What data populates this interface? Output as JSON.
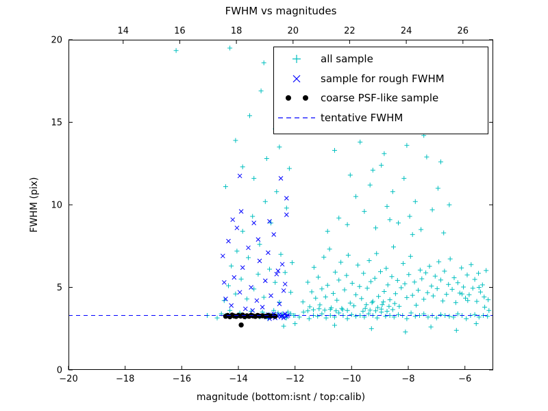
{
  "figure": {
    "title": "FWHM vs magnitudes",
    "xlabel": "magnitude (bottom:isnt / top:calib)",
    "ylabel": "FWHM (pix)"
  },
  "legend": {
    "items": [
      {
        "label": "all sample",
        "marker": "plus",
        "color": "#00BFBF"
      },
      {
        "label": "sample for rough FWHM",
        "marker": "x",
        "color": "#0000FF"
      },
      {
        "label": "coarse PSF-like sample",
        "marker": "dots",
        "color": "#000000"
      },
      {
        "label": "tentative FWHM",
        "marker": "dashed-line",
        "color": "#0000FF"
      }
    ]
  },
  "chart_data": {
    "type": "scatter",
    "title": "FWHM vs magnitudes",
    "xlabel": "magnitude (bottom:isnt / top:calib)",
    "ylabel": "FWHM (pix)",
    "xlim": [
      -20,
      -5
    ],
    "ylim": [
      0,
      20
    ],
    "x_ticks_bottom": [
      -20,
      -18,
      -16,
      -14,
      -12,
      -10,
      -8,
      -6
    ],
    "top_axis": {
      "range": [
        12.07,
        27.07
      ],
      "ticks": [
        14,
        16,
        18,
        20,
        22,
        24,
        26
      ]
    },
    "y_ticks": [
      0,
      5,
      10,
      15,
      20
    ],
    "grid": false,
    "legend_position": "upper right",
    "tentative_fwhm": 3.3,
    "series": [
      {
        "name": "all sample",
        "marker": "plus",
        "color": "#00BFBF",
        "points": [
          -13.25,
          3.2,
          -13.1,
          3.35,
          -12.95,
          3.1,
          -12.8,
          3.3,
          -12.6,
          3.45,
          -12.45,
          3.25,
          -12.3,
          3.15,
          -12.15,
          3.4,
          -12.0,
          3.3,
          -11.85,
          3.2,
          -11.7,
          3.5,
          -11.5,
          3.1,
          -11.35,
          3.3,
          -11.2,
          3.25,
          -11.05,
          3.4,
          -10.9,
          3.15,
          -10.75,
          3.3,
          -10.6,
          3.2,
          -10.45,
          3.45,
          -10.3,
          3.3,
          -10.15,
          3.1,
          -10.0,
          3.35,
          -9.85,
          3.25,
          -9.7,
          3.3,
          -9.55,
          3.2,
          -9.4,
          3.4,
          -9.25,
          3.3,
          -9.1,
          3.15,
          -8.95,
          3.5,
          -8.8,
          3.25,
          -8.65,
          3.3,
          -8.5,
          3.2,
          -8.35,
          3.35,
          -8.2,
          3.3,
          -8.05,
          3.1,
          -7.9,
          3.45,
          -7.75,
          3.25,
          -7.6,
          3.3,
          -7.45,
          3.4,
          -7.3,
          3.2,
          -7.15,
          3.3,
          -7.0,
          3.15,
          -6.85,
          3.35,
          -6.7,
          3.3,
          -6.55,
          3.25,
          -6.4,
          3.2,
          -6.25,
          3.4,
          -6.1,
          3.3,
          -5.95,
          3.1,
          -5.8,
          3.3,
          -5.65,
          3.35,
          -5.5,
          3.2,
          -5.35,
          3.3,
          -5.2,
          3.25,
          -9.3,
          2.5,
          -8.1,
          2.3,
          -7.2,
          2.6,
          -10.6,
          2.7,
          -6.3,
          2.4,
          -5.6,
          2.8,
          -5.9,
          4.2,
          -5.3,
          3.8,
          -6.1,
          4.6,
          -5.5,
          5.0,
          -5.15,
          3.6,
          -12.4,
          2.65,
          -12.0,
          2.8,
          -15.1,
          3.3,
          -11.72,
          4.12,
          -11.55,
          5.31,
          -11.48,
          3.82,
          -11.41,
          4.73,
          -11.33,
          6.21,
          -11.27,
          4.35,
          -11.18,
          5.62,
          -11.12,
          3.94,
          -11.05,
          4.91,
          -10.98,
          6.83,
          -10.92,
          4.42,
          -10.85,
          5.13,
          -10.78,
          7.32,
          -10.72,
          3.76,
          -10.65,
          4.63,
          -10.58,
          5.92,
          -10.52,
          4.22,
          -10.45,
          5.44,
          -10.38,
          6.52,
          -10.32,
          3.65,
          -10.25,
          4.85,
          -10.18,
          5.72,
          -10.12,
          6.95,
          -10.05,
          4.05,
          -9.98,
          5.25,
          -9.92,
          3.88,
          -9.85,
          4.55,
          -9.78,
          6.35,
          -9.72,
          5.05,
          -9.65,
          4.32,
          -9.58,
          5.85,
          -9.52,
          3.72,
          -9.45,
          4.95,
          -9.38,
          6.62,
          -9.32,
          5.35,
          -9.25,
          4.15,
          -9.18,
          5.55,
          -9.12,
          7.05,
          -9.05,
          4.45,
          -8.98,
          5.95,
          -8.92,
          3.95,
          -8.85,
          4.75,
          -8.78,
          6.15,
          -8.72,
          5.15,
          -8.65,
          4.25,
          -8.58,
          5.65,
          -8.52,
          7.45,
          -8.45,
          4.62,
          -8.38,
          5.42,
          -8.32,
          3.85,
          -8.25,
          4.98,
          -8.18,
          6.45,
          -8.12,
          5.22,
          -8.05,
          4.38,
          -7.98,
          5.78,
          -7.92,
          6.88,
          -7.85,
          4.52,
          -7.78,
          5.32,
          -7.72,
          3.92,
          -7.65,
          4.82,
          -7.58,
          6.05,
          -7.52,
          5.52,
          -7.45,
          4.28,
          -7.38,
          5.88,
          -7.32,
          4.68,
          -7.25,
          6.28,
          -7.18,
          5.08,
          -7.12,
          4.48,
          -7.05,
          5.68,
          -6.98,
          4.92,
          -6.92,
          6.55,
          -6.85,
          5.45,
          -6.78,
          4.18,
          -6.72,
          5.98,
          -6.65,
          4.58,
          -6.58,
          5.18,
          -6.52,
          6.72,
          -6.45,
          4.88,
          -6.38,
          5.58,
          -6.32,
          4.08,
          -6.25,
          5.28,
          -6.18,
          4.65,
          -6.12,
          6.18,
          -6.05,
          5.02,
          -5.98,
          4.35,
          -5.92,
          5.75,
          -5.85,
          4.55,
          -5.78,
          6.38,
          -5.72,
          4.95,
          -5.65,
          5.48,
          -5.58,
          4.15,
          -5.52,
          5.85,
          -5.45,
          4.72,
          -5.38,
          5.15,
          -5.32,
          4.42,
          -5.25,
          6.02,
          -5.18,
          4.25,
          -9.6,
          3.55,
          -9.35,
          3.62,
          -9.15,
          3.58,
          -8.95,
          3.68,
          -8.75,
          3.55,
          -8.55,
          3.65,
          -9.48,
          3.95,
          -9.28,
          4.08,
          -9.08,
          3.78,
          -8.88,
          4.12,
          -8.68,
          3.85,
          -8.48,
          4.02,
          -10.15,
          3.6,
          -10.35,
          3.72,
          -10.55,
          3.58,
          -10.75,
          3.66,
          -10.95,
          3.62,
          -11.15,
          3.7,
          -11.35,
          3.64,
          -11.55,
          3.58,
          -10.85,
          8.4,
          -10.45,
          9.2,
          -10.15,
          8.8,
          -9.85,
          10.5,
          -9.55,
          9.6,
          -9.35,
          11.2,
          -9.15,
          8.6,
          -8.95,
          12.4,
          -8.75,
          9.9,
          -8.55,
          10.8,
          -8.35,
          8.9,
          -8.15,
          11.6,
          -7.95,
          9.3,
          -7.75,
          10.2,
          -7.55,
          8.5,
          -7.35,
          12.9,
          -7.15,
          9.7,
          -6.95,
          11.0,
          -6.75,
          8.3,
          -6.55,
          10.0,
          -10.6,
          13.3,
          -9.7,
          13.8,
          -8.85,
          13.1,
          -8.05,
          13.6,
          -7.45,
          14.2,
          -9.25,
          12.1,
          -10.05,
          11.8,
          -6.85,
          12.6,
          -7.85,
          8.2,
          -8.65,
          9.1,
          -10.3,
          15.2,
          -9.9,
          16.8,
          -9.5,
          14.9,
          -9.1,
          17.5,
          -8.7,
          15.6,
          -8.3,
          18.3,
          -7.9,
          16.2,
          -7.5,
          19.2,
          -7.1,
          15.0,
          -10.7,
          18.0,
          -14.75,
          3.15,
          -14.6,
          3.4,
          -14.5,
          4.2,
          -14.45,
          3.3,
          -14.35,
          5.1,
          -14.3,
          3.6,
          -14.25,
          6.3,
          -14.15,
          3.25,
          -14.1,
          4.6,
          -14.05,
          7.2,
          -13.95,
          3.45,
          -13.9,
          5.5,
          -13.85,
          8.4,
          -13.75,
          3.2,
          -13.7,
          4.3,
          -13.65,
          6.8,
          -13.55,
          3.55,
          -13.5,
          9.3,
          -13.45,
          4.9,
          -13.35,
          3.3,
          -13.3,
          5.8,
          -13.25,
          7.6,
          -13.15,
          3.5,
          -13.1,
          4.4,
          -13.05,
          10.2,
          -12.95,
          3.35,
          -12.9,
          6.1,
          -12.85,
          8.9,
          -12.75,
          3.6,
          -12.7,
          5.3,
          -12.65,
          10.8,
          -12.55,
          4.1,
          -12.5,
          7.0,
          -12.45,
          3.4,
          -12.35,
          5.9,
          -12.3,
          9.8,
          -12.25,
          3.5,
          -12.15,
          4.7,
          -12.1,
          6.5,
          -12.05,
          3.3,
          -14.3,
          19.5,
          -12.4,
          19.25,
          -13.2,
          16.9,
          -13.6,
          15.4,
          -12.7,
          14.6,
          -14.1,
          13.9,
          -13.0,
          12.8,
          -12.2,
          12.2,
          -13.45,
          11.6,
          -14.45,
          11.1,
          -12.55,
          13.5,
          -13.85,
          12.3,
          -12.3,
          17.9,
          -13.1,
          18.6,
          -16.2,
          19.35
        ]
      },
      {
        "name": "sample for rough FWHM",
        "marker": "x",
        "color": "#0000FF",
        "points": [
          -13.0,
          3.2,
          -12.95,
          3.35,
          -12.9,
          3.1,
          -12.85,
          3.3,
          -12.8,
          3.2,
          -12.75,
          3.4,
          -12.7,
          3.15,
          -12.65,
          3.3,
          -12.6,
          3.25,
          -12.55,
          3.35,
          -12.5,
          3.2,
          -12.45,
          3.3,
          -12.4,
          3.15,
          -12.35,
          3.4,
          -12.3,
          3.25,
          -12.25,
          3.3,
          -14.55,
          6.9,
          -14.45,
          4.3,
          -14.35,
          7.8,
          -14.25,
          3.9,
          -14.15,
          5.6,
          -14.05,
          8.6,
          -13.95,
          4.7,
          -13.85,
          6.2,
          -13.75,
          3.7,
          -13.65,
          7.4,
          -13.55,
          5.0,
          -13.45,
          8.9,
          -13.35,
          4.2,
          -13.25,
          6.6,
          -13.15,
          3.8,
          -13.05,
          5.4,
          -12.95,
          7.1,
          -12.85,
          4.5,
          -12.75,
          8.2,
          -12.65,
          5.8,
          -12.55,
          4.0,
          -12.45,
          6.4,
          -12.35,
          5.2,
          -12.3,
          9.4,
          -14.2,
          9.1,
          -13.9,
          9.6,
          -13.5,
          3.6,
          -13.3,
          7.9,
          -12.9,
          9.0,
          -12.6,
          6.0,
          -14.5,
          5.3,
          -12.4,
          4.8,
          -13.95,
          11.75,
          -12.5,
          11.6,
          -12.3,
          10.4
        ]
      },
      {
        "name": "coarse PSF-like sample",
        "marker": "dot",
        "color": "#000000",
        "points": [
          -14.45,
          3.25,
          -14.38,
          3.3,
          -14.3,
          3.22,
          -14.22,
          3.32,
          -14.15,
          3.27,
          -14.08,
          3.24,
          -14.0,
          3.3,
          -13.92,
          3.26,
          -13.85,
          3.32,
          -13.78,
          3.23,
          -13.7,
          3.28,
          -13.62,
          3.25,
          -13.55,
          3.31,
          -13.48,
          3.27,
          -13.4,
          3.24,
          -13.32,
          3.3,
          -13.25,
          3.26,
          -13.15,
          3.28,
          -13.05,
          3.25,
          -12.95,
          3.3,
          -12.85,
          3.27,
          -12.7,
          3.25,
          -13.9,
          2.72
        ]
      },
      {
        "name": "tentative FWHM",
        "marker": "dashed-line",
        "color": "#0000FF",
        "y": 3.3
      }
    ]
  }
}
